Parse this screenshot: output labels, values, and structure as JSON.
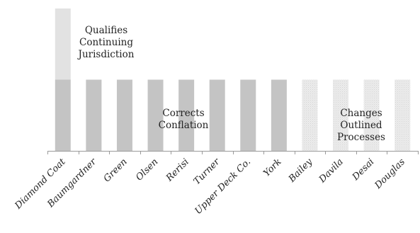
{
  "chart_data": {
    "type": "bar",
    "stacked": true,
    "title": "",
    "xlabel": "",
    "ylabel": "",
    "ylim": [
      0,
      2
    ],
    "grid": false,
    "legend": "none",
    "categories": [
      "Diamond Coat",
      "Baumgardner",
      "Green",
      "Olsen",
      "Rerisi",
      "Turner",
      "Upper Deck Co.",
      "York",
      "Bailey",
      "Davila",
      "Desai",
      "Douglas"
    ],
    "series": [
      {
        "values": [
          1,
          1,
          1,
          1,
          1,
          1,
          1,
          1,
          0,
          0,
          0,
          0
        ],
        "color": "#c4c4c4"
      },
      {
        "values": [
          0,
          0,
          0,
          0,
          0,
          0,
          0,
          0,
          1,
          1,
          1,
          1
        ],
        "color": "#ebebeb",
        "pattern": "dotted"
      },
      {
        "values": [
          1,
          0,
          0,
          0,
          0,
          0,
          0,
          0,
          0,
          0,
          0,
          0
        ],
        "color": "#e2e2e2"
      }
    ],
    "annotations": [
      {
        "lines": [
          "Qualifies",
          "Continuing",
          "Jurisdiction"
        ]
      },
      {
        "lines": [
          "Corrects",
          "Conflation"
        ]
      },
      {
        "lines": [
          "Changes",
          "Outlined",
          "Processes"
        ]
      }
    ]
  }
}
